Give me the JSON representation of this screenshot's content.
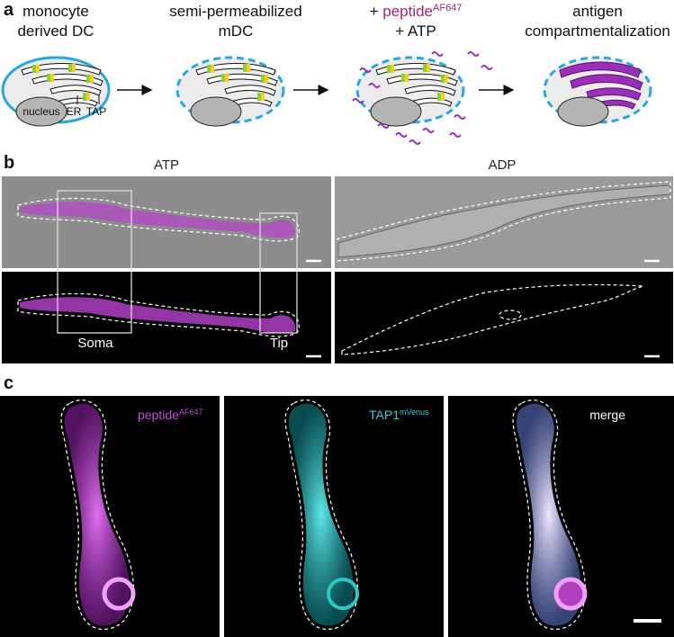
{
  "panel_a": {
    "label": "a",
    "steps": [
      {
        "lines": [
          "monocyte",
          "derived DC"
        ]
      },
      {
        "lines": [
          "semi-permeabilized",
          "mDC"
        ]
      },
      {
        "plus": "+",
        "peptide": "peptide",
        "superscript": "AF647",
        "line2": "+ ATP"
      },
      {
        "lines": [
          "antigen",
          "compartmentalization"
        ]
      }
    ],
    "cell_labels": {
      "nucleus": "nucleus",
      "er": "ER",
      "tap": "TAP"
    }
  },
  "panel_b": {
    "label": "b",
    "columns": [
      "ATP",
      "ADP"
    ],
    "boxes": [
      "Soma",
      "Tip"
    ]
  },
  "panel_c": {
    "label": "c",
    "channels": [
      {
        "name": "peptide",
        "superscript": "AF647"
      },
      {
        "name": "TAP1",
        "superscript": "mVenus"
      },
      {
        "name": "merge"
      }
    ]
  }
}
